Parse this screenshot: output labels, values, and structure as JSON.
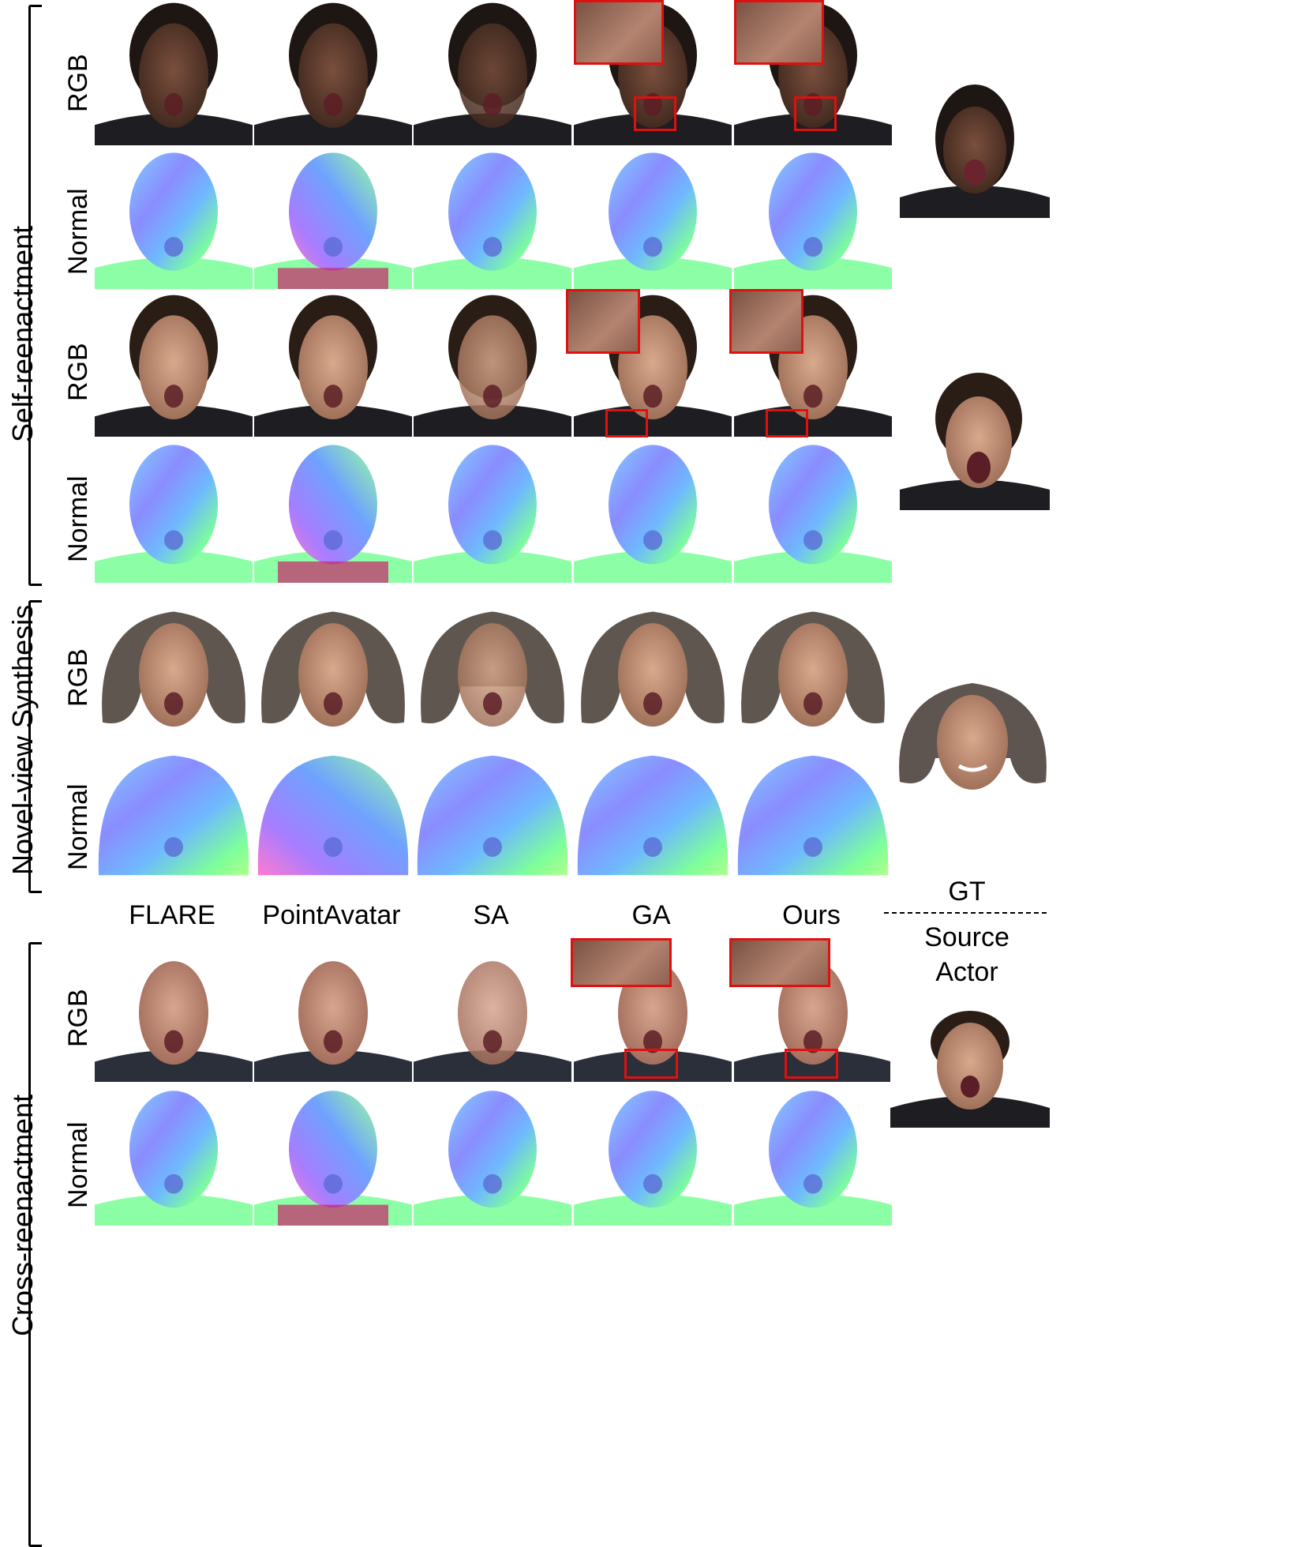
{
  "sections": {
    "self": "Self-reenactment",
    "novel": "Novel-view Synthesis",
    "cross": "Cross-reenactment"
  },
  "row_labels": {
    "rgb": "RGB",
    "normal": "Normal"
  },
  "methods": [
    "FLARE",
    "PointAvatar",
    "SA",
    "GA",
    "Ours"
  ],
  "gt": {
    "top": "GT",
    "bottom_line1": "Source",
    "bottom_line2": "Actor"
  },
  "colors": {
    "highlight_box": "#e01010",
    "skin_dark": "#5b3a2c",
    "skin_light": "#c99578",
    "hair_dark": "#1d1612",
    "hair_grey": "#7d7874",
    "shirt_dark": "#1d1d22"
  },
  "icons": [
    "face-rgb-render",
    "face-normal-render",
    "zoom-inset"
  ]
}
